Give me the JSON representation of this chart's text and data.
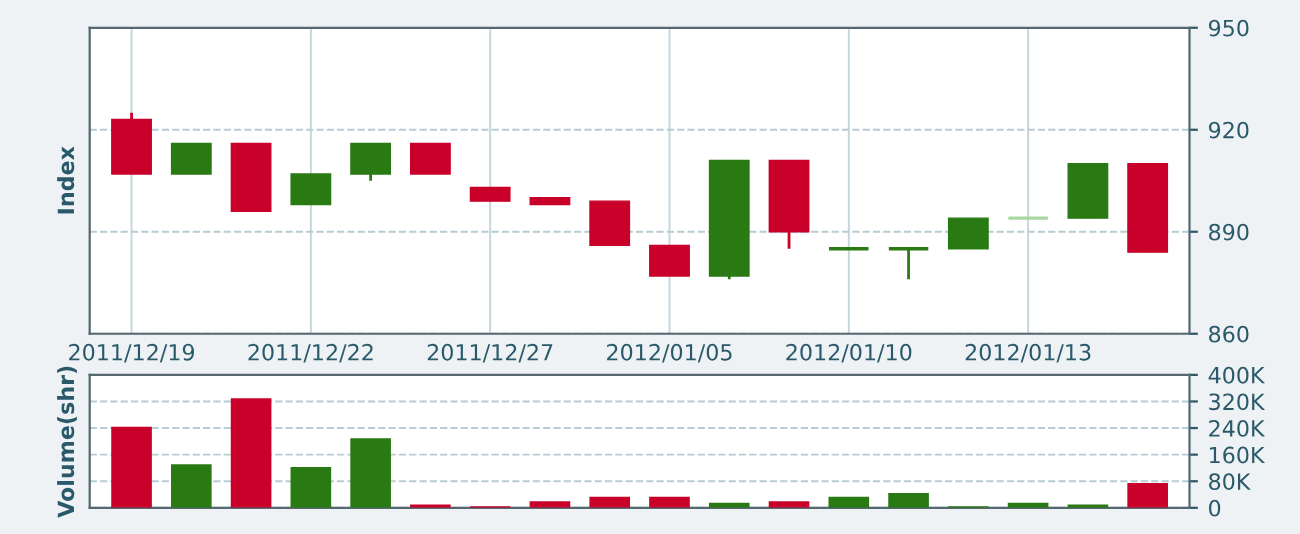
{
  "chart_data": [
    {
      "type": "candlestick",
      "ylabel": "Index",
      "categories": [
        "2011/12/19",
        null,
        null,
        "2011/12/22",
        null,
        null,
        "2011/12/27",
        null,
        null,
        "2012/01/05",
        null,
        null,
        "2012/01/10",
        null,
        null,
        "2012/01/13",
        null,
        null
      ],
      "ohlc": [
        [
          923,
          925,
          907,
          907
        ],
        [
          907,
          916,
          907,
          916
        ],
        [
          916,
          916,
          896,
          896
        ],
        [
          898,
          907,
          898,
          907
        ],
        [
          907,
          916,
          905,
          916
        ],
        [
          916,
          916,
          907,
          907
        ],
        [
          903,
          903,
          899,
          899
        ],
        [
          900,
          900,
          898,
          898
        ],
        [
          899,
          899,
          886,
          886
        ],
        [
          886,
          886,
          877,
          877
        ],
        [
          877,
          911,
          876,
          911
        ],
        [
          911,
          911,
          885,
          890
        ],
        [
          885,
          885,
          885,
          885
        ],
        [
          885,
          885,
          876,
          885
        ],
        [
          885,
          894,
          885,
          894
        ],
        [
          894,
          894,
          894,
          894
        ],
        [
          894,
          910,
          894,
          910
        ],
        [
          910,
          910,
          884,
          884
        ]
      ],
      "colors": [
        "#c8002a",
        "#2a7a14",
        "#c8002a",
        "#2a7a14",
        "#2a7a14",
        "#c8002a",
        "#c8002a",
        "#c8002a",
        "#c8002a",
        "#c8002a",
        "#2a7a14",
        "#c8002a",
        "#2a7a14",
        "#2a7a14",
        "#2a7a14",
        "#a8d8a0",
        "#2a7a14",
        "#c8002a"
      ],
      "ylim": [
        860,
        950
      ],
      "yticks": [
        860,
        890,
        920,
        950
      ],
      "grid": true
    },
    {
      "type": "bar",
      "ylabel": "Volume(shr)",
      "categories": [
        null,
        null,
        null,
        null,
        null,
        null,
        null,
        null,
        null,
        null,
        null,
        null,
        null,
        null,
        null,
        null,
        null,
        null
      ],
      "values": [
        244000,
        131000,
        330000,
        123000,
        209000,
        10000,
        5000,
        20000,
        33000,
        33000,
        15000,
        20000,
        33000,
        45000,
        5000,
        15000,
        10000,
        75000
      ],
      "colors": [
        "#c8002a",
        "#2a7a14",
        "#c8002a",
        "#2a7a14",
        "#2a7a14",
        "#c8002a",
        "#c8002a",
        "#c8002a",
        "#c8002a",
        "#c8002a",
        "#2a7a14",
        "#c8002a",
        "#2a7a14",
        "#2a7a14",
        "#2a7a14",
        "#2a7a14",
        "#2a7a14",
        "#c8002a"
      ],
      "ylim": [
        0,
        400000
      ],
      "yticks": [
        {
          "value": 0,
          "label": "0"
        },
        {
          "value": 80000,
          "label": "80K"
        },
        {
          "value": 160000,
          "label": "160K"
        },
        {
          "value": 240000,
          "label": "240K"
        },
        {
          "value": 320000,
          "label": "320K"
        },
        {
          "value": 400000,
          "label": "400K"
        }
      ],
      "grid": true,
      "tick_labels": "y"
    }
  ]
}
